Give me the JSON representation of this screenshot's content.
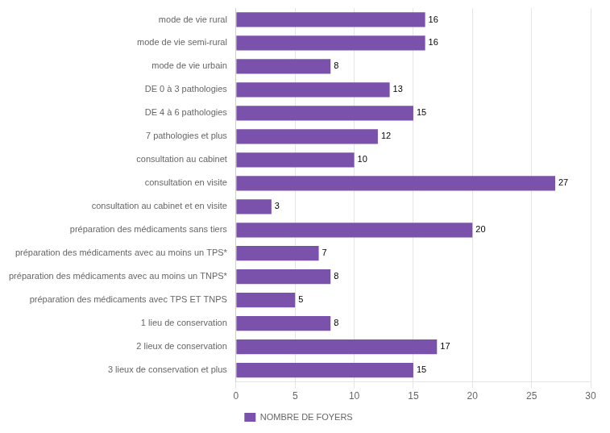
{
  "chart_data": {
    "type": "bar",
    "orientation": "horizontal",
    "categories": [
      "3 lieux de conservation et plus",
      "2 lieux de conservation",
      "1 lieu de conservation",
      "préparation des médicaments avec TPS ET TNPS",
      "préparation des médicaments avec au moins un TNPS*",
      "préparation des médicaments avec au moins un TPS*",
      "préparation des médicaments sans tiers",
      "consultation au cabinet et en visite",
      "consultation en visite",
      "consultation au cabinet",
      "7 pathologies et plus",
      "DE 4 à 6 pathologies",
      "DE 0 à 3 pathologies",
      "mode de vie urbain",
      "mode de vie semi-rural",
      "mode de vie rural"
    ],
    "series": [
      {
        "name": "NOMBRE DE FOYERS",
        "color": "#7B52AB",
        "values": [
          15,
          17,
          8,
          5,
          8,
          7,
          20,
          3,
          27,
          10,
          12,
          15,
          13,
          8,
          16,
          16
        ]
      }
    ],
    "xlim": [
      0,
      30
    ],
    "xticks": [
      0,
      5,
      10,
      15,
      20,
      25,
      30
    ],
    "grid": true,
    "data_labels": true,
    "legend": "bottom"
  }
}
